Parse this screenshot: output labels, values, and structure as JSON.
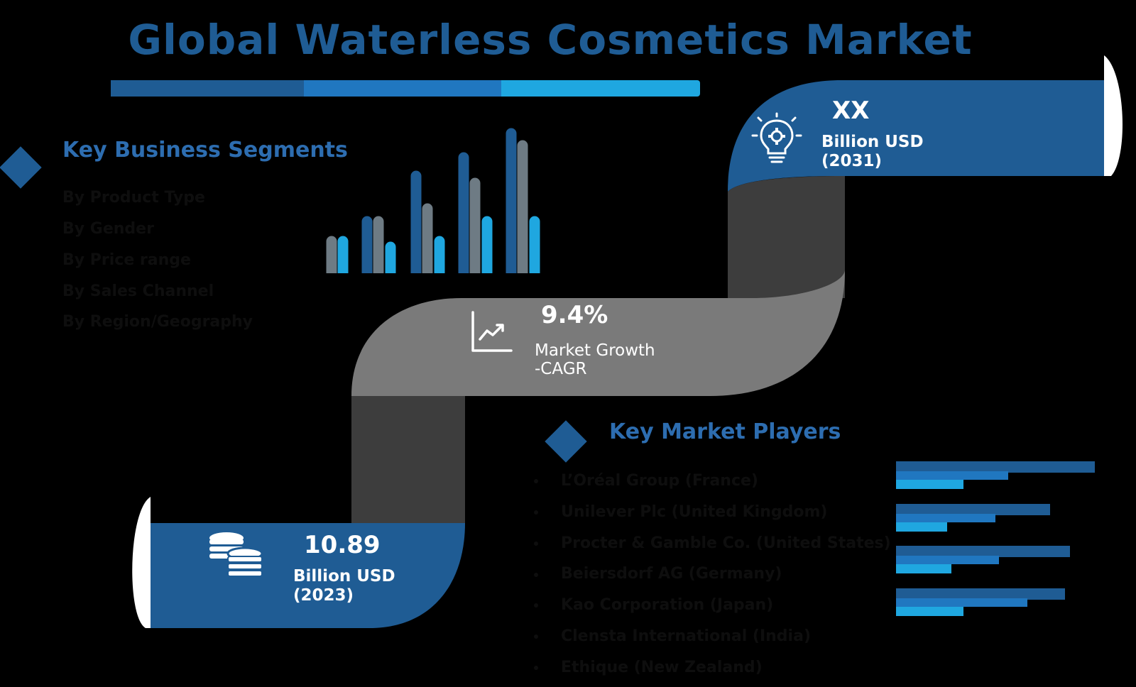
{
  "title": "Global Waterless Cosmetics Market",
  "colors": {
    "dark_blue": "#1f5c94",
    "mid_blue": "#2077c0",
    "light_blue": "#1fa7e0",
    "gray": "#6e7b84",
    "ribbon_gray": "#7a7a7a",
    "ribbon_dark": "#3d3d3d"
  },
  "segments": {
    "heading": "Key Business Segments",
    "items": [
      "By Product Type",
      "By Gender",
      "By Price range",
      "By Sales Channel",
      "By Region/Geography"
    ]
  },
  "stat_2031": {
    "value": "XX",
    "unit": "Billion USD",
    "year": "(2031)",
    "icon": "lightbulb-gear-icon"
  },
  "stat_cagr": {
    "value": "9.4%",
    "label_line1": "Market Growth",
    "label_line2": "-CAGR",
    "icon": "trend-chart-icon"
  },
  "stat_2023": {
    "value": "10.89",
    "unit": "Billion USD",
    "year": "(2023)",
    "icon": "coins-icon"
  },
  "players": {
    "heading": "Key Market Players",
    "items": [
      "L’Oréal Group (France)",
      "Unilever Plc (United Kingdom)",
      "Procter & Gamble Co. (United States)",
      "Beiersdorf AG (Germany)",
      "Kao Corporation (Japan)",
      "Clensta International (India)",
      "Ethique (New Zealand)"
    ]
  }
}
